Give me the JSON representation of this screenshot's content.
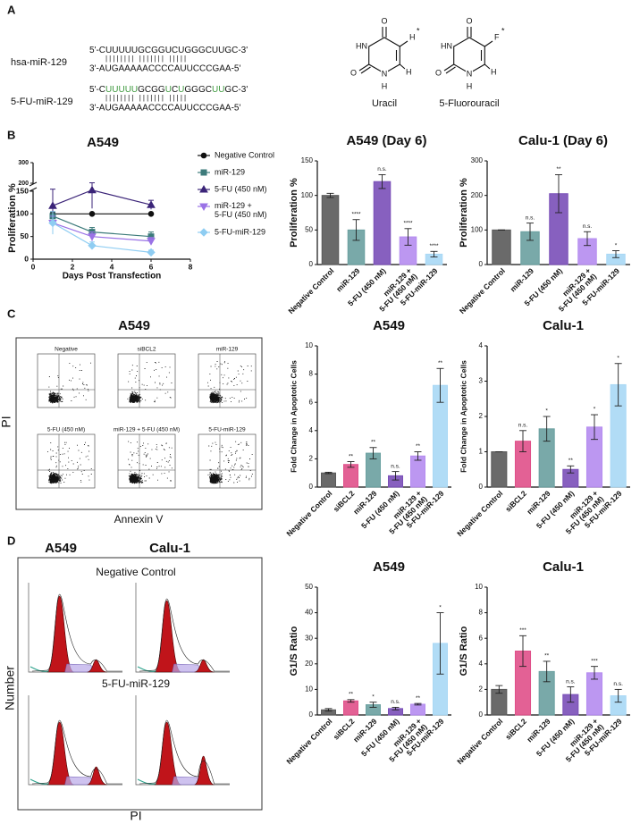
{
  "panel_labels": [
    "A",
    "B",
    "C",
    "D"
  ],
  "sequences": [
    {
      "name": "hsa-miR-129",
      "strand_5": [
        {
          "text": "5'-CUUUUUGCGGUCUGGGCUUGC-3'",
          "modified": false
        }
      ],
      "pairing": "||||||||  |||||||  |||||",
      "strand_3": "3'-AUGAAAAACCCCAUUCCCGAA-5'"
    },
    {
      "name": "5-FU-miR-129",
      "strand_5": [
        {
          "text": "5'-C",
          "modified": false
        },
        {
          "text": "UUUUU",
          "modified": true
        },
        {
          "text": "GCGG",
          "modified": false
        },
        {
          "text": "U",
          "modified": true
        },
        {
          "text": "C",
          "modified": false
        },
        {
          "text": "U",
          "modified": true
        },
        {
          "text": "GGGC",
          "modified": false
        },
        {
          "text": "UU",
          "modified": true
        },
        {
          "text": "GC-3'",
          "modified": false
        }
      ],
      "pairing": "||||||||  |||||||  |||||",
      "strand_3": "3'-AUGAAAAACCCCAUUCCCGAA-5'"
    }
  ],
  "modified_color": "#3f9a3f",
  "structures": [
    {
      "name": "Uracil",
      "modified": false,
      "atoms": [
        "O",
        "HN",
        "O",
        "N",
        "H",
        "H",
        "*",
        "H"
      ]
    },
    {
      "name": "5-Fluorouracil",
      "modified": true,
      "atoms": [
        "O",
        "HN",
        "O",
        "N",
        "H",
        "F",
        "*",
        "H"
      ]
    }
  ],
  "chart_data": [
    {
      "type": "line",
      "title": "A549",
      "x_label": "Days Post Transfection",
      "y_label": "Proliferation %",
      "x": [
        1,
        3,
        6
      ],
      "series": [
        {
          "name": "Negative Control",
          "color": "#111111",
          "marker": "circle",
          "values": [
            100,
            100,
            100
          ],
          "errors": [
            0,
            0,
            0
          ]
        },
        {
          "name": "miR-129",
          "color": "#3d7b7b",
          "marker": "square",
          "values": [
            95,
            60,
            50
          ],
          "errors": [
            10,
            10,
            10
          ]
        },
        {
          "name": "5-FU (450 nM)",
          "color": "#3b2478",
          "marker": "triangle",
          "values": [
            118,
            157,
            120
          ],
          "errors": [
            45,
            45,
            10
          ]
        },
        {
          "name": "miR-129 +\n5-FU (450 nM)",
          "color": "#9a72e6",
          "marker": "triangle-down",
          "values": [
            80,
            50,
            40
          ],
          "errors": [
            15,
            10,
            8
          ]
        },
        {
          "name": "5-FU-miR-129",
          "color": "#8fcdf2",
          "marker": "diamond",
          "values": [
            80,
            30,
            15
          ],
          "errors": [
            25,
            8,
            5
          ]
        }
      ],
      "xlim": [
        0,
        8
      ],
      "xticks": [
        0,
        2,
        4,
        6,
        8
      ],
      "ylim": [
        0,
        300
      ],
      "yticks": [
        0,
        50,
        100,
        150,
        200,
        300
      ],
      "axis_break": [
        150,
        200
      ],
      "legend": "right"
    },
    {
      "type": "bar",
      "title": "A549 (Day 6)",
      "y_label": "Proliferation %",
      "categories": [
        "Negative Control",
        "miR-129",
        "5-FU (450 nM)",
        "miR-129 +\n5-FU (450 nM)",
        "5-FU-miR-129"
      ],
      "series": [
        {
          "values": [
            100,
            50,
            120,
            40,
            15
          ],
          "errors": [
            3,
            15,
            10,
            12,
            4
          ],
          "colors": [
            "#5a5a5a",
            "#6aa0a0",
            "#7a4fb8",
            "#b58cf0",
            "#a9d8f5"
          ],
          "annotations": [
            null,
            "****",
            "n.s.",
            "****",
            "****"
          ]
        }
      ],
      "ylim": [
        0,
        150
      ],
      "yticks": [
        0,
        50,
        100,
        150
      ]
    },
    {
      "type": "bar",
      "title": "Calu-1 (Day 6)",
      "y_label": "Proliferation %",
      "categories": [
        "Negative Control",
        "miR-129",
        "5-FU (450 nM)",
        "miR-129 +\n5-FU (450 nM)",
        "5-FU-miR-129"
      ],
      "series": [
        {
          "values": [
            100,
            95,
            205,
            75,
            30
          ],
          "errors": [
            0,
            25,
            55,
            20,
            10
          ],
          "colors": [
            "#5a5a5a",
            "#6aa0a0",
            "#7a4fb8",
            "#b58cf0",
            "#a9d8f5"
          ],
          "annotations": [
            null,
            "n.s.",
            "**",
            "n.s.",
            "*"
          ]
        }
      ],
      "ylim": [
        0,
        300
      ],
      "yticks": [
        0,
        100,
        200,
        300
      ]
    },
    {
      "type": "bar",
      "title": "A549",
      "y_label": "Fold Change in Apoptotic Cells",
      "categories": [
        "Negative Control",
        "siBCL2",
        "miR-129",
        "5-FU (450 nM)",
        "miR-129 +\n5-FU (450 nM)",
        "5-FU-miR-129"
      ],
      "series": [
        {
          "values": [
            1,
            1.6,
            2.4,
            0.8,
            2.2,
            7.2
          ],
          "errors": [
            0.05,
            0.2,
            0.4,
            0.3,
            0.3,
            1.2
          ],
          "colors": [
            "#5a5a5a",
            "#e0508a",
            "#6aa0a0",
            "#7a4fb8",
            "#b58cf0",
            "#a9d8f5"
          ],
          "annotations": [
            null,
            "**",
            "**",
            "n.s.",
            "**",
            "**"
          ]
        }
      ],
      "ylim": [
        0,
        10
      ],
      "yticks": [
        0,
        2,
        4,
        6,
        8,
        10
      ]
    },
    {
      "type": "bar",
      "title": "Calu-1",
      "y_label": "Fold Change in Apoptotic Cells",
      "categories": [
        "Negative Control",
        "siBCL2",
        "miR-129",
        "5-FU (450 nM)",
        "miR-129 +\n5-FU (450 nM)",
        "5-FU-miR-129"
      ],
      "series": [
        {
          "values": [
            1,
            1.3,
            1.65,
            0.5,
            1.7,
            2.9
          ],
          "errors": [
            0,
            0.3,
            0.35,
            0.1,
            0.35,
            0.6
          ],
          "colors": [
            "#5a5a5a",
            "#e0508a",
            "#6aa0a0",
            "#7a4fb8",
            "#b58cf0",
            "#a9d8f5"
          ],
          "annotations": [
            null,
            "n.s.",
            "*",
            "**",
            "*",
            "*"
          ]
        }
      ],
      "ylim": [
        0,
        4
      ],
      "yticks": [
        0,
        1,
        2,
        3,
        4
      ]
    },
    {
      "type": "bar",
      "title": "A549",
      "y_label": "G1/S Ratio",
      "categories": [
        "Negative Control",
        "siBCL2",
        "miR-129",
        "5-FU (450 nM)",
        "miR-129 +\n5-FU (450 nM)",
        "5-FU-miR-129"
      ],
      "series": [
        {
          "values": [
            2,
            5.5,
            4,
            2.5,
            4.2,
            28
          ],
          "errors": [
            0.5,
            0.5,
            1,
            0.5,
            0.3,
            12
          ],
          "colors": [
            "#5a5a5a",
            "#e0508a",
            "#6aa0a0",
            "#7a4fb8",
            "#b58cf0",
            "#a9d8f5"
          ],
          "annotations": [
            null,
            "**",
            "*",
            "n.s.",
            "**",
            "*"
          ]
        }
      ],
      "ylim": [
        0,
        50
      ],
      "yticks": [
        0,
        10,
        20,
        30,
        40,
        50
      ]
    },
    {
      "type": "bar",
      "title": "Calu-1",
      "y_label": "G1/S Ratio",
      "categories": [
        "Negative Control",
        "siBCL2",
        "miR-129",
        "5-FU (450 nM)",
        "miR-129 +\n5-FU (450 nM)",
        "5-FU-miR-129"
      ],
      "series": [
        {
          "values": [
            2,
            5,
            3.4,
            1.6,
            3.3,
            1.5
          ],
          "errors": [
            0.3,
            1.2,
            0.8,
            0.6,
            0.5,
            0.5
          ],
          "colors": [
            "#5a5a5a",
            "#e0508a",
            "#6aa0a0",
            "#7a4fb8",
            "#b58cf0",
            "#a9d8f5"
          ],
          "annotations": [
            null,
            "***",
            "**",
            "n.s.",
            "***",
            "n.s."
          ]
        }
      ],
      "ylim": [
        0,
        10
      ],
      "yticks": [
        0,
        2,
        4,
        6,
        8,
        10
      ]
    }
  ],
  "flow_cytometry": {
    "title": "A549",
    "x_label": "Annexin V",
    "y_label": "PI",
    "plots": [
      "Negative",
      "siBCL2",
      "miR-129",
      "5-FU (450 nM)",
      "miR-129 + 5-FU (450 nM)",
      "5-FU-miR-129"
    ]
  },
  "cell_cycle": {
    "columns": [
      "A549",
      "Calu-1"
    ],
    "rows": [
      "Negative Control",
      "5-FU-miR-129"
    ],
    "x_label": "PI",
    "y_label": "Number"
  }
}
